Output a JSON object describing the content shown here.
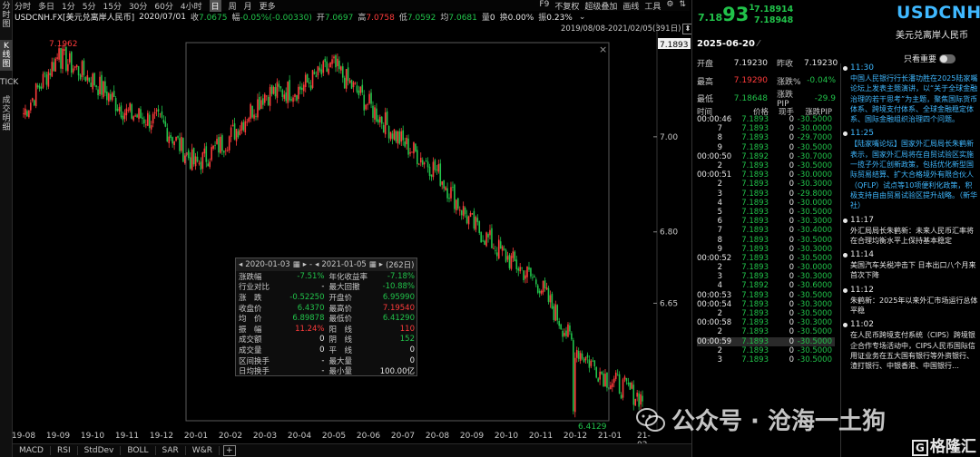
{
  "left_tabs": [
    "分时图",
    "K线图",
    "TICK",
    "成交明细"
  ],
  "timeframes": [
    "分时",
    "多日",
    "1分",
    "5分",
    "15分",
    "30分",
    "60分",
    "4小时",
    "日",
    "周",
    "月",
    "更多"
  ],
  "active_timeframe": "日",
  "toolbar_right": [
    "F9",
    "不复权",
    "超级叠加",
    "画线",
    "工具",
    "gear-icon",
    "sort-icon"
  ],
  "infobar": {
    "symbol": "USDCNH.FX[美元兑离岸人民币]",
    "date": "2020/07/01",
    "close_label": "收",
    "close": "7.0675",
    "change_label": "幅",
    "change": "-0.05%(-0.00330)",
    "open_label": "开",
    "open": "7.0697",
    "high_label": "高",
    "high": "7.0758",
    "low_label": "低",
    "low": "7.0592",
    "avg_label": "均",
    "avg": "7.0681",
    "vol_label": "量",
    "vol": "0",
    "turnover_label": "换",
    "turnover": "0.00%",
    "amp_label": "振",
    "amp": "0.23%"
  },
  "range": {
    "text": "2019/08/08-2021/02/05(391日)"
  },
  "price_tags": {
    "top_left": "7.1962",
    "right_current": "7.1893",
    "bottom_low": "6.4129"
  },
  "chart_data": {
    "type": "candlestick",
    "x_ticks": [
      "19-08",
      "19-09",
      "19-10",
      "19-11",
      "19-12",
      "20-01",
      "20-02",
      "20-03",
      "20-04",
      "20-05",
      "20-06",
      "20-07",
      "20-08",
      "20-09",
      "20-10",
      "20-11",
      "20-12",
      "21-01",
      "21-02"
    ],
    "y_ticks": [
      "7.00",
      "6.80",
      "6.65"
    ],
    "ylim": [
      6.38,
      7.24
    ],
    "up_color": "#ff3b3b",
    "down_color": "#21c24a",
    "monthly_close": [
      7.05,
      7.17,
      7.12,
      7.05,
      7.03,
      6.94,
      7.0,
      7.09,
      7.1,
      7.15,
      7.07,
      6.99,
      6.93,
      6.82,
      6.75,
      6.69,
      6.56,
      6.49,
      6.45
    ],
    "high": 7.1962,
    "low": 6.4129
  },
  "stats_popup": {
    "start": "2020-01-03",
    "end": "2021-01-05",
    "days": "(262日)",
    "rows": [
      [
        "涨跌幅",
        "-7.51%",
        "年化收益率",
        "-7.18%"
      ],
      [
        "行业对比",
        "-",
        "最大回撤",
        "-10.88%"
      ],
      [
        "涨　跌",
        "-0.52250",
        "开盘价",
        "6.95990"
      ],
      [
        "收盘价",
        "6.4370",
        "最高价",
        "7.19540"
      ],
      [
        "均　价",
        "6.89878",
        "最低价",
        "6.41290"
      ],
      [
        "振　幅",
        "11.24%",
        "阳　线",
        "110"
      ],
      [
        "成交额",
        "0",
        "阴　线",
        "152"
      ],
      [
        "成交量",
        "0",
        "平　线",
        "0"
      ],
      [
        "区间换手",
        "-",
        "最大量",
        "0"
      ],
      [
        "日均换手",
        "-",
        "最小量",
        "100.00亿"
      ]
    ]
  },
  "indicators": [
    "MACD",
    "RSI",
    "StdDev",
    "BOLL",
    "SAR",
    "W&R"
  ],
  "quote": {
    "price_main": "7.18",
    "price_big": "93",
    "price_sup": "1",
    "bid": "7.18914",
    "ask": "7.18948",
    "symbol": "USDCNH",
    "name_cn": "美元兑离岸人民币",
    "date": "2025-06-20",
    "rows": [
      [
        "开盘",
        "7.19230",
        "昨收",
        "7.19230"
      ],
      [
        "最高",
        "7.19290",
        "涨跌%",
        "-0.04%"
      ],
      [
        "最低",
        "7.18648",
        "涨跌PIP",
        "-29.9"
      ]
    ]
  },
  "ticks_header": [
    "时间",
    "价格",
    "现手",
    "涨跌PIP"
  ],
  "ticks": [
    [
      "00:00:46",
      "7.1893",
      "0",
      "-30.5000"
    ],
    [
      "7",
      "7.1893",
      "0",
      "-30.0000"
    ],
    [
      "8",
      "7.1893",
      "0",
      "-29.7000"
    ],
    [
      "9",
      "7.1893",
      "0",
      "-30.5000"
    ],
    [
      "00:00:50",
      "7.1892",
      "0",
      "-30.7000"
    ],
    [
      "2",
      "7.1893",
      "0",
      "-30.5000"
    ],
    [
      "00:00:51",
      "7.1893",
      "0",
      "-30.0000"
    ],
    [
      "2",
      "7.1893",
      "0",
      "-30.3000"
    ],
    [
      "3",
      "7.1893",
      "0",
      "-29.8000"
    ],
    [
      "4",
      "7.1893",
      "0",
      "-30.0000"
    ],
    [
      "5",
      "7.1893",
      "0",
      "-30.5000"
    ],
    [
      "6",
      "7.1893",
      "0",
      "-30.3000"
    ],
    [
      "7",
      "7.1893",
      "0",
      "-30.4000"
    ],
    [
      "8",
      "7.1893",
      "0",
      "-30.5000"
    ],
    [
      "9",
      "7.1893",
      "0",
      "-30.3000"
    ],
    [
      "00:00:52",
      "7.1893",
      "0",
      "-30.5000"
    ],
    [
      "2",
      "7.1893",
      "0",
      "-30.0000"
    ],
    [
      "3",
      "7.1893",
      "0",
      "-30.3000"
    ],
    [
      "4",
      "7.1892",
      "0",
      "-30.6000"
    ],
    [
      "00:00:53",
      "7.1893",
      "0",
      "-30.5000"
    ],
    [
      "00:00:54",
      "7.1893",
      "0",
      "-30.3000"
    ],
    [
      "2",
      "7.1893",
      "0",
      "-30.5000"
    ],
    [
      "00:00:58",
      "7.1893",
      "0",
      "-30.3000"
    ],
    [
      "2",
      "7.1893",
      "0",
      "-30.5000"
    ],
    [
      "00:00:59",
      "7.1893",
      "0",
      "-30.5000"
    ],
    [
      "2",
      "7.1893",
      "0",
      "-30.5000"
    ],
    [
      "3",
      "7.1893",
      "0",
      "-30.5000"
    ]
  ],
  "news_filter": "只看重要",
  "news": [
    {
      "time": "11:30",
      "text": "中国人民银行行长潘功胜在2025陆家嘴论坛上发表主题演讲，以“关于全球金融治理的若干思考”为主题，聚焦国际货币体系、跨境支付体系、全球金融稳定体系、国际金融组织治理四个问题。",
      "blue": true
    },
    {
      "time": "11:25",
      "text": "【陆家嘴论坛】国家外汇局局长朱鹤新表示，国家外汇局将在自贸试验区实施一揽子外汇创新政策，包括优化新型国际贸易结算、扩大合格境外有限合伙人（QFLP）试点等10项便利化政策，积极支持自由贸易试验区提升战略。（新华社）",
      "blue": true
    },
    {
      "time": "11:17",
      "text": "外汇局局长朱鹤新：未来人民币汇率将在合理均衡水平上保持基本稳定",
      "blue": false
    },
    {
      "time": "11:14",
      "text": "美国汽车关税冲击下 日本出口八个月来首次下降",
      "blue": false
    },
    {
      "time": "11:12",
      "text": "朱鹤新：2025年以来外汇市场运行总体平稳",
      "blue": false
    },
    {
      "time": "11:02",
      "text": "在人民币跨境支付系统（CIPS）跨境银企合作专场活动中，CIPS人民币国际信用证业务在五大国有银行等外资银行、渣打银行、中银香港、中国银行…",
      "blue": false
    }
  ],
  "watermark": {
    "text": "公众号 · 沧海一土狗"
  },
  "logo": {
    "text": "格隆汇"
  }
}
